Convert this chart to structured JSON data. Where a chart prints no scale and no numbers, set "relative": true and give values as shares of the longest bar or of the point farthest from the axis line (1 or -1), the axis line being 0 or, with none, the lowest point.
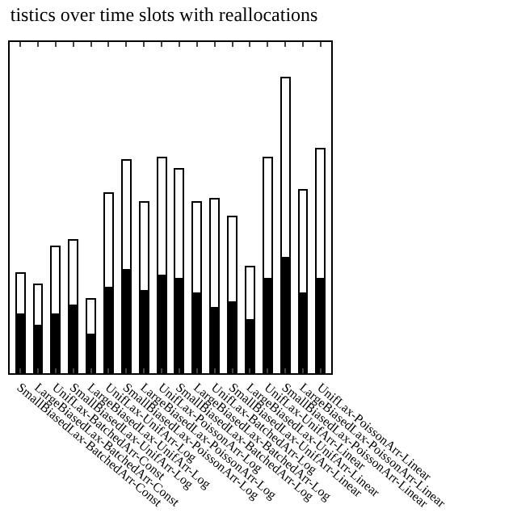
{
  "chart_data": {
    "type": "bar",
    "title": "tistics over time slots with reallocations",
    "relative": true,
    "stacked": true,
    "categories": [
      "SmallBiasedLax-BatchedArr-Const",
      "LargeBiasedLax-BatchedArr-Const",
      "UnifLax-BatchedArr-Const",
      "SmallBiasedLax-UnifArr-Log",
      "LargeBiasedLax-UnifArr-Log",
      "UnifLax-UnifArr-Log",
      "SmallBiasedLax-PoissonArr-Log",
      "LargeBiasedLax-PoissonArr-Log",
      "UnifLax-PoissonArr-Log",
      "SmallBiasedLax-BatchedArr-Log",
      "LargeBiasedLax-BatchedArr-Log",
      "UnifLax-BatchedArr-Log",
      "SmallBiasedLax-UnifArr-Linear",
      "LargeBiasedLax-UnifArr-Linear",
      "UnifLax-UnifArr-Linear",
      "SmallBiasedLax-PoissonArr-Linear",
      "LargeBiasedLax-PoissonArr-Linear",
      "UnifLax-PoissonArr-Linear"
    ],
    "series": [
      {
        "color": "#000000",
        "values": [
          0.2,
          0.16,
          0.2,
          0.23,
          0.13,
          0.29,
          0.35,
          0.28,
          0.33,
          0.32,
          0.27,
          0.22,
          0.24,
          0.18,
          0.32,
          0.39,
          0.27,
          0.32
        ]
      },
      {
        "color": "#ffffff",
        "values": [
          0.14,
          0.14,
          0.23,
          0.22,
          0.12,
          0.32,
          0.37,
          0.3,
          0.4,
          0.37,
          0.31,
          0.37,
          0.29,
          0.18,
          0.41,
          0.61,
          0.35,
          0.44
        ]
      }
    ]
  }
}
